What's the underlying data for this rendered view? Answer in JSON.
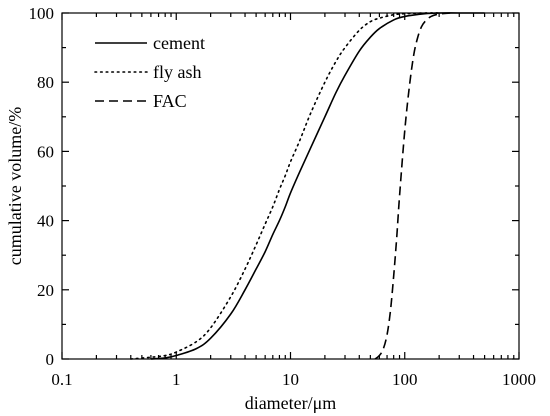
{
  "chart_data": {
    "type": "line",
    "title": "",
    "xlabel": "diameter/μm",
    "ylabel": "cumulative volume/%",
    "xscale": "log",
    "xlim": [
      0.1,
      1000
    ],
    "ylim": [
      0,
      100
    ],
    "xticks": [
      "0.1",
      "1",
      "10",
      "100",
      "1000"
    ],
    "yticks": [
      "0",
      "20",
      "40",
      "60",
      "80",
      "100"
    ],
    "grid": false,
    "legend": {
      "placement": "top-left",
      "entries": [
        "cement",
        "fly ash",
        "FAC"
      ]
    },
    "series": [
      {
        "name": "cement",
        "linestyle": "solid",
        "x": [
          0.6,
          0.8,
          1,
          1.5,
          2,
          3,
          4,
          5,
          6,
          7,
          8,
          9,
          10,
          12,
          15,
          20,
          25,
          30,
          40,
          50,
          60,
          80,
          100,
          150,
          200,
          300,
          500
        ],
        "y": [
          0,
          0.3,
          1,
          3,
          6,
          13,
          20,
          26,
          31,
          36,
          40,
          44,
          48,
          54,
          61,
          70,
          77,
          82,
          89,
          93,
          95.5,
          98,
          99,
          99.8,
          100,
          100,
          100
        ]
      },
      {
        "name": "fly ash",
        "linestyle": "dotted",
        "x": [
          0.4,
          0.6,
          0.8,
          1,
          1.5,
          2,
          3,
          4,
          5,
          6,
          7,
          8,
          9,
          10,
          12,
          15,
          20,
          25,
          30,
          40,
          50,
          60,
          80,
          100,
          150,
          200
        ],
        "y": [
          0,
          0.5,
          1,
          2,
          5,
          9,
          18,
          26,
          33,
          39,
          44,
          49,
          53,
          57,
          63,
          71,
          80,
          86,
          90,
          95,
          97.5,
          98.5,
          99.5,
          99.8,
          100,
          100
        ]
      },
      {
        "name": "FAC",
        "linestyle": "dashed",
        "x": [
          55,
          60,
          65,
          70,
          75,
          80,
          85,
          90,
          100,
          110,
          120,
          130,
          140,
          150,
          170,
          200,
          250
        ],
        "y": [
          0,
          1,
          3,
          7,
          14,
          24,
          35,
          47,
          66,
          79,
          88,
          93,
          96,
          97.5,
          99,
          99.7,
          100
        ]
      }
    ]
  }
}
